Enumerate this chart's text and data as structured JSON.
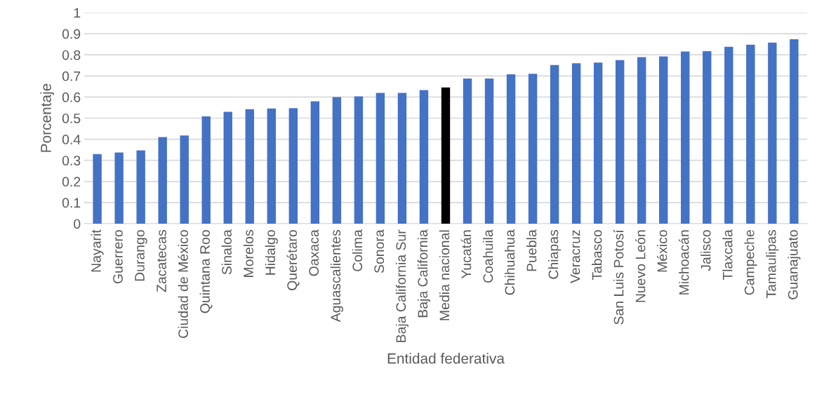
{
  "chart_data": {
    "type": "bar",
    "xlabel": "Entidad federativa",
    "ylabel": "Porcentaje",
    "categories": [
      "Nayarit",
      "Guerrero",
      "Durango",
      "Zacatecas",
      "Ciudad de México",
      "Quintana Roo",
      "Sinaloa",
      "Morelos",
      "Hidalgo",
      "Querétaro",
      "Oaxaca",
      "Aguascalientes",
      "Colima",
      "Sonora",
      "Baja California Sur",
      "Baja California",
      "Media nacional",
      "Yucatán",
      "Coahuila",
      "Chihuahua",
      "Puebla",
      "Chiapas",
      "Veracruz",
      "Tabasco",
      "San Luis Potosí",
      "Nuevo León",
      "México",
      "Michoacán",
      "Jalisco",
      "Tlaxcala",
      "Campeche",
      "Tamaulipas",
      "Guanajuato"
    ],
    "values": [
      0.33,
      0.337,
      0.347,
      0.41,
      0.418,
      0.508,
      0.53,
      0.542,
      0.546,
      0.547,
      0.58,
      0.6,
      0.603,
      0.62,
      0.62,
      0.633,
      0.645,
      0.688,
      0.688,
      0.708,
      0.71,
      0.752,
      0.76,
      0.763,
      0.775,
      0.789,
      0.792,
      0.816,
      0.817,
      0.838,
      0.848,
      0.858,
      0.874
    ],
    "colors": [
      "#4472c4",
      "#4472c4",
      "#4472c4",
      "#4472c4",
      "#4472c4",
      "#4472c4",
      "#4472c4",
      "#4472c4",
      "#4472c4",
      "#4472c4",
      "#4472c4",
      "#4472c4",
      "#4472c4",
      "#4472c4",
      "#4472c4",
      "#4472c4",
      "#000000",
      "#4472c4",
      "#4472c4",
      "#4472c4",
      "#4472c4",
      "#4472c4",
      "#4472c4",
      "#4472c4",
      "#4472c4",
      "#4472c4",
      "#4472c4",
      "#4472c4",
      "#4472c4",
      "#4472c4",
      "#4472c4",
      "#4472c4",
      "#4472c4"
    ],
    "ylim": [
      0,
      1
    ],
    "yticks": [
      0,
      0.1,
      0.2,
      0.3,
      0.4,
      0.5,
      0.6,
      0.7,
      0.8,
      0.9,
      1
    ],
    "grid": "y",
    "legend": false
  }
}
